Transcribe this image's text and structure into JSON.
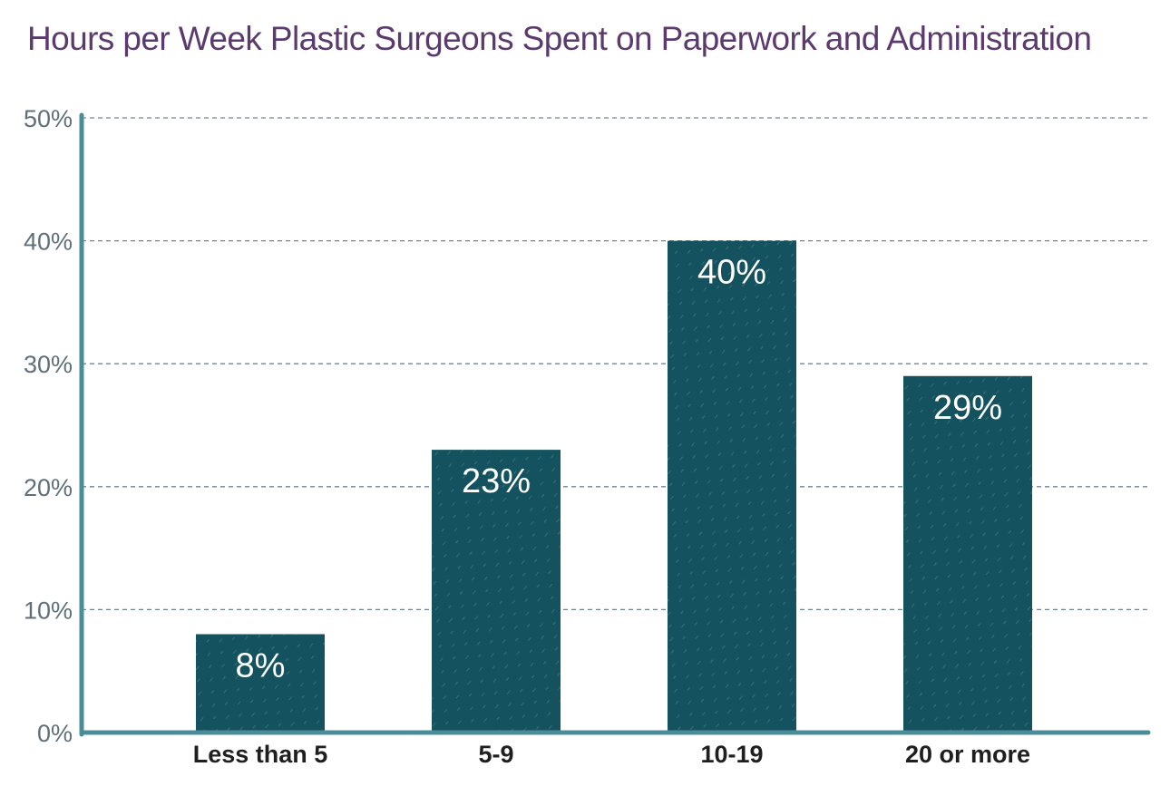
{
  "chart_data": {
    "type": "bar",
    "title": "Hours per Week Plastic Surgeons Spent on Paperwork and Administration",
    "categories": [
      "Less than 5",
      "5-9",
      "10-19",
      "20 or more"
    ],
    "values": [
      8,
      23,
      40,
      29
    ],
    "data_labels": [
      "8%",
      "23%",
      "40%",
      "29%"
    ],
    "ylim": [
      0,
      50
    ],
    "yticks": [
      0,
      10,
      20,
      30,
      40,
      50
    ],
    "ytick_labels": [
      "0%",
      "10%",
      "20%",
      "30%",
      "40%",
      "50%"
    ],
    "xlabel": "",
    "ylabel": "",
    "grid": true,
    "legend": false
  },
  "colors": {
    "title": "#5b3a6e",
    "bar": "#13525e",
    "axis": "#4a8d98",
    "grid": "#6f8690",
    "tick_text": "#5f6f79",
    "category_text": "#1f1f1f",
    "data_label_text": "#ffffff"
  }
}
